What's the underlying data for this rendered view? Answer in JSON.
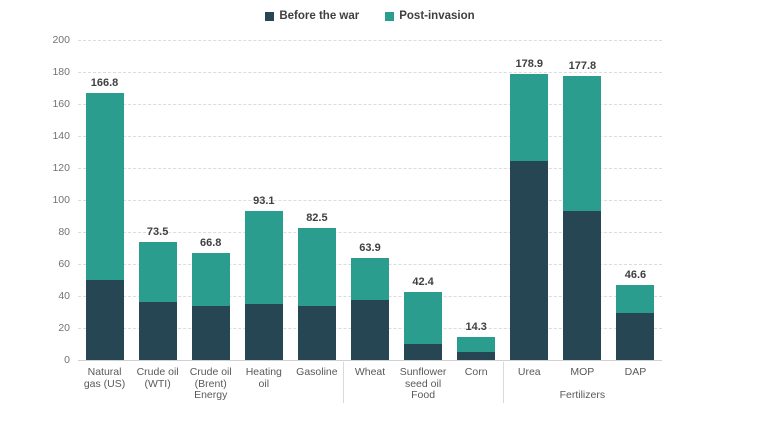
{
  "legend": {
    "items": [
      {
        "label": "Before the war",
        "color": "#264653"
      },
      {
        "label": "Post-invasion",
        "color": "#2a9d8f"
      }
    ]
  },
  "chart_data": {
    "type": "bar",
    "stacked": true,
    "title": "",
    "categories": [
      "Natural gas (US)",
      "Crude oil (WTI)",
      "Crude oil (Brent)",
      "Heating oil",
      "Gasoline",
      "Wheat",
      "Sunflower seed oil",
      "Corn",
      "Urea",
      "MOP",
      "DAP"
    ],
    "groups": [
      {
        "label": "Energy",
        "count": 5
      },
      {
        "label": "Food",
        "count": 3
      },
      {
        "label": "Fertilizers",
        "count": 3
      }
    ],
    "series": [
      {
        "name": "Before the war",
        "color": "#264653",
        "values": [
          50.0,
          36.0,
          33.5,
          35.0,
          33.5,
          37.5,
          10.0,
          5.0,
          124.5,
          93.0,
          29.5
        ]
      },
      {
        "name": "Post-invasion",
        "color": "#2a9d8f",
        "values": [
          116.8,
          37.5,
          33.3,
          58.1,
          49.0,
          26.4,
          32.4,
          9.3,
          54.4,
          84.8,
          17.1
        ]
      }
    ],
    "totals": [
      166.8,
      73.5,
      66.8,
      93.1,
      82.5,
      63.9,
      42.4,
      14.3,
      178.9,
      177.8,
      46.6
    ],
    "total_labels": [
      "166.8",
      "73.5",
      "66.8",
      "93.1",
      "82.5",
      "63.9",
      "42.4",
      "14.3",
      "178.9",
      "177.8",
      "46.6"
    ],
    "y_axis": {
      "min": 0,
      "max": 200,
      "step": 20,
      "ticks": [
        0,
        20,
        40,
        60,
        80,
        100,
        120,
        140,
        160,
        180,
        200
      ],
      "tick_labels": [
        "0",
        "20",
        "40",
        "60",
        "80",
        "100",
        "120",
        "140",
        "160",
        "180",
        "200"
      ]
    },
    "grid": "horizontal-dashed",
    "legend_position": "top-center"
  }
}
